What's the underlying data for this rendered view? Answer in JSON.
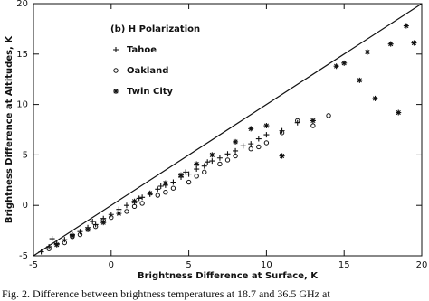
{
  "chart_data": {
    "type": "scatter",
    "annotation": "(b) H Polarization",
    "xlabel": "Brightness Difference at Surface, K",
    "ylabel": "Brightness Difference at Altitudes, K",
    "xlim": [
      -5,
      20
    ],
    "ylim": [
      -5,
      20
    ],
    "xticks": [
      -5,
      0,
      5,
      10,
      15,
      20
    ],
    "yticks": [
      -5,
      0,
      5,
      10,
      15,
      20
    ],
    "color": "#111111",
    "series": [
      {
        "name": "Tahoe",
        "marker": "+",
        "x": [
          -4.5,
          -4,
          -3.5,
          -3,
          -2.5,
          -2,
          -1.5,
          -1,
          -0.5,
          0,
          0.5,
          1,
          1.5,
          2,
          2.5,
          3,
          3.5,
          4,
          4.5,
          5,
          5.5,
          6,
          6.5,
          7,
          7.5,
          8,
          8.5,
          9,
          9.5,
          10,
          11,
          12,
          -3.8,
          -1.2,
          1.8,
          3.2,
          4.8,
          6.2
        ],
        "values": [
          -4.6,
          -4.1,
          -3.8,
          -3.4,
          -2.9,
          -2.6,
          -2.2,
          -1.9,
          -1.3,
          -0.9,
          -0.4,
          0,
          0.3,
          0.8,
          1.1,
          1.6,
          2,
          2.3,
          2.8,
          3.1,
          3.6,
          3.9,
          4.4,
          4.7,
          5.1,
          5.4,
          5.9,
          6.1,
          6.6,
          7,
          7.4,
          8.2,
          -3.3,
          -1.6,
          0.7,
          1.9,
          3.3,
          4.3
        ]
      },
      {
        "name": "Oakland",
        "marker": "o",
        "x": [
          -4,
          -3,
          -2,
          -1,
          0,
          1,
          2,
          3,
          4,
          5,
          6,
          7,
          8,
          9,
          10,
          11,
          12,
          -2.5,
          -0.5,
          1.5,
          3.5,
          5.5,
          7.5,
          9.5,
          14,
          13
        ],
        "values": [
          -4.3,
          -3.7,
          -2.9,
          -2.1,
          -1.2,
          -0.6,
          0.2,
          1,
          1.7,
          2.3,
          3.3,
          4.1,
          4.9,
          5.6,
          6.2,
          7.2,
          8.4,
          -3.1,
          -1.5,
          -0.1,
          1.3,
          2.9,
          4.5,
          5.8,
          8.9,
          7.9
        ]
      },
      {
        "name": "Twin City",
        "marker": "*",
        "x": [
          -3.5,
          -2.5,
          -1.5,
          -0.5,
          0.5,
          1.5,
          2.5,
          3.5,
          4.5,
          5.5,
          6.5,
          8,
          9,
          10,
          11,
          13,
          15,
          16.5,
          17,
          18,
          18.5,
          19.5,
          19,
          16,
          14.5
        ],
        "values": [
          -3.9,
          -3,
          -2.4,
          -1.7,
          -0.8,
          0.4,
          1.2,
          2.2,
          3,
          4.1,
          5,
          6.3,
          7.6,
          7.9,
          4.9,
          8.4,
          14.1,
          15.2,
          10.6,
          16,
          9.2,
          16.1,
          17.8,
          12.4,
          13.8
        ]
      }
    ]
  },
  "caption": "Fig. 2.   Difference between brightness temperatures at 18.7 and 36.5 GHz at"
}
